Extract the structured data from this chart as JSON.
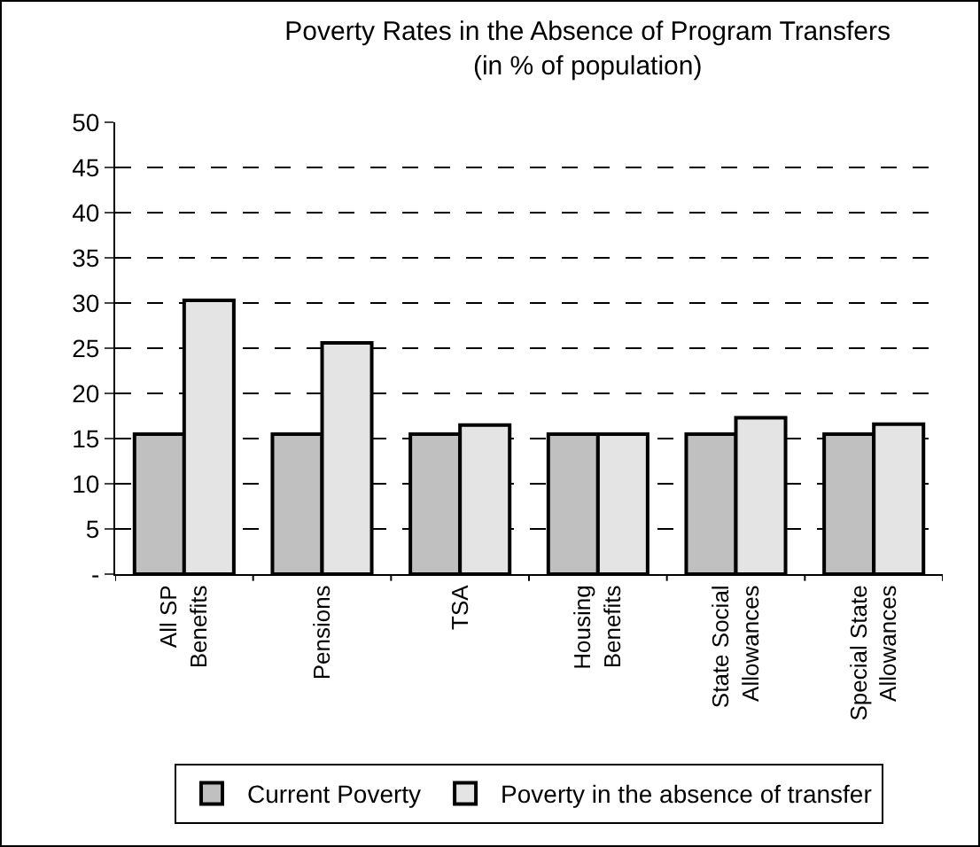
{
  "chart_data": {
    "type": "bar",
    "title": "Poverty Rates in the Absence of Program Transfers\n(in % of population)",
    "categories": [
      "All SP\nBenefits",
      "Pensions",
      "TSA",
      "Housing\nBenefits",
      "State Social\nAllowances",
      "Special State\nAllowances"
    ],
    "series": [
      {
        "name": "Current Poverty",
        "color": "#c0c0c0",
        "values": [
          15.5,
          15.5,
          15.5,
          15.5,
          15.5,
          15.5
        ]
      },
      {
        "name": "Poverty in the absence of transfer",
        "color": "#e4e4e4",
        "values": [
          30.3,
          25.6,
          16.5,
          15.5,
          17.3,
          16.6
        ]
      }
    ],
    "ylim": [
      0,
      50
    ],
    "yticks": [
      {
        "value": 0,
        "label": "-"
      },
      5,
      10,
      15,
      20,
      25,
      30,
      35,
      40,
      45,
      50
    ],
    "grid": "y",
    "legend": "bottom"
  }
}
